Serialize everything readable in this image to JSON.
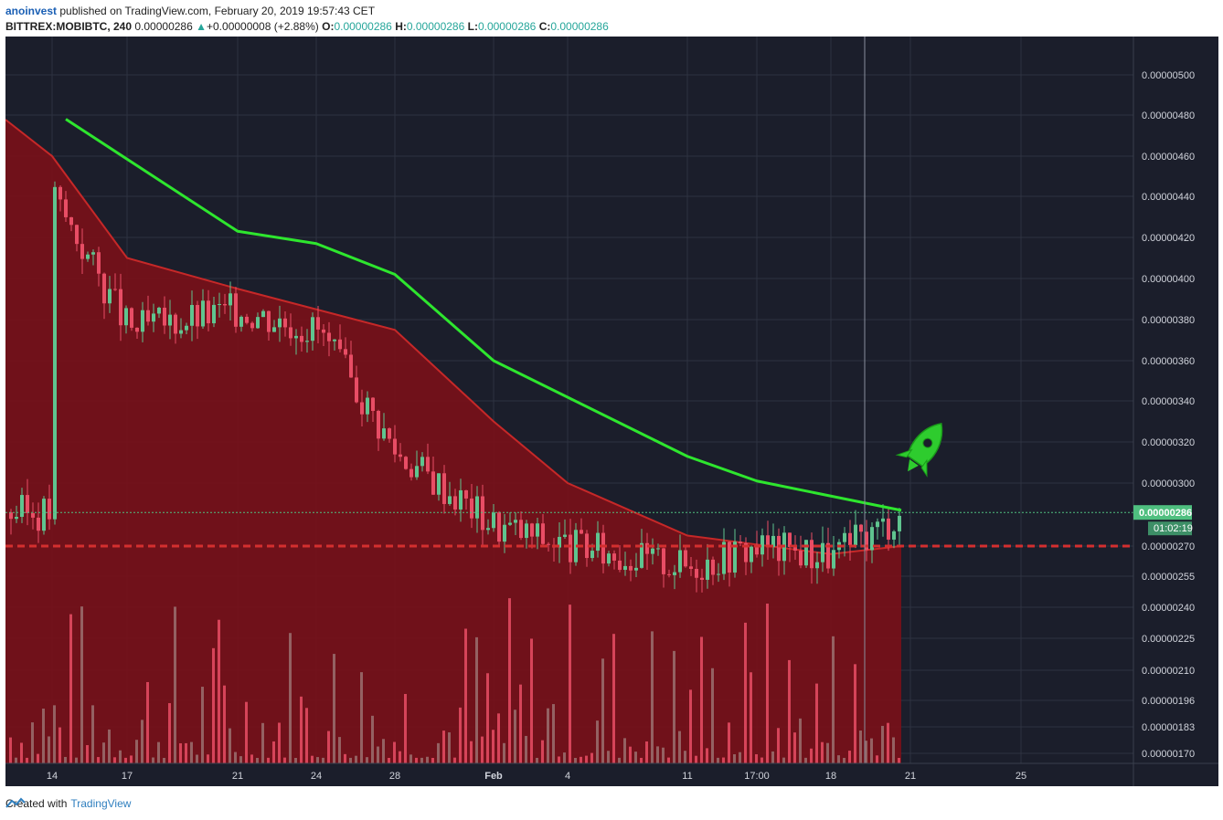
{
  "header": {
    "author": "anoinvest",
    "published_text": "published on TradingView.com, February 20, 2019 19:57:43 CET",
    "symbol": "BITTREX:MOBIBTC, 240",
    "last": "0.00000286",
    "change_arrow": "▲",
    "change": "+0.00000008 (+2.88%)",
    "o_label": "O:",
    "o": "0.00000286",
    "h_label": "H:",
    "h": "0.00000286",
    "l_label": "L:",
    "l": "0.00000286",
    "c_label": "C:",
    "c": "0.00000286"
  },
  "footer": {
    "created_with": "Created with",
    "brand": "TradingView"
  },
  "colors": {
    "background": "#1b1e2b",
    "grid": "#2e3240",
    "up": "#5fc48f",
    "down": "#e84d65",
    "ma_fast": "#c62828",
    "ma_slow": "#2ee62e",
    "support": "#d32f2f",
    "price_label": "#4fbf7f"
  },
  "chart_data": {
    "type": "candlestick",
    "symbol": "BITTREX:MOBIBTC",
    "interval": "240",
    "last_price": 2.86e-06,
    "countdown": "01:02:19",
    "support_level": 2.7e-06,
    "x_ticks": [
      "14",
      "17",
      "21",
      "24",
      "28",
      "Feb",
      "4",
      "11",
      "17:00",
      "18",
      "21",
      "25"
    ],
    "y_ticks": [
      "0.00000500",
      "0.00000480",
      "0.00000460",
      "0.00000440",
      "0.00000420",
      "0.00000400",
      "0.00000380",
      "0.00000360",
      "0.00000340",
      "0.00000320",
      "0.00000300",
      "0.00000270",
      "0.00000255",
      "0.00000240",
      "0.00000225",
      "0.00000210",
      "0.00000196",
      "0.00000183",
      "0.00000170"
    ],
    "price_path": [
      {
        "x": "14",
        "y": 4.4e-06
      },
      {
        "x": "17",
        "y": 3.75e-06
      },
      {
        "x": "21",
        "y": 3.85e-06
      },
      {
        "x": "24",
        "y": 3.75e-06
      },
      {
        "x": "28",
        "y": 3.15e-06
      },
      {
        "x": "Feb",
        "y": 2.8e-06
      },
      {
        "x": "4",
        "y": 2.7e-06
      },
      {
        "x": "11",
        "y": 2.6e-06
      },
      {
        "x": "17:00",
        "y": 2.7e-06
      },
      {
        "x": "18",
        "y": 2.65e-06
      },
      {
        "x": "21",
        "y": 2.86e-06
      }
    ],
    "ma_slow": [
      {
        "x": "14",
        "y": 4.78e-06
      },
      {
        "x": "21",
        "y": 4.23e-06
      },
      {
        "x": "24",
        "y": 4.17e-06
      },
      {
        "x": "28",
        "y": 4.02e-06
      },
      {
        "x": "Feb",
        "y": 3.6e-06
      },
      {
        "x": "11",
        "y": 3.13e-06
      },
      {
        "x": "17:00",
        "y": 3.01e-06
      },
      {
        "x": "21",
        "y": 2.87e-06
      }
    ],
    "ma_fast": [
      {
        "x": "14",
        "y": 4.6e-06
      },
      {
        "x": "17",
        "y": 4.1e-06
      },
      {
        "x": "21",
        "y": 3.95e-06
      },
      {
        "x": "28",
        "y": 3.75e-06
      },
      {
        "x": "Feb",
        "y": 3.3e-06
      },
      {
        "x": "4",
        "y": 3e-06
      },
      {
        "x": "11",
        "y": 2.75e-06
      },
      {
        "x": "18",
        "y": 2.66e-06
      },
      {
        "x": "21",
        "y": 2.7e-06
      }
    ],
    "annotations": [
      "rocket-icon"
    ]
  }
}
